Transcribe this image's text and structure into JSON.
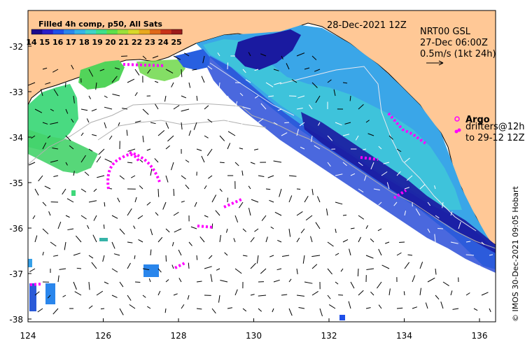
{
  "colorbar": {
    "title": "Filled 4h comp, p50, All Sats",
    "ticks": [
      "14",
      "15",
      "16",
      "17",
      "18",
      "19",
      "20",
      "21",
      "22",
      "23",
      "24",
      "25"
    ],
    "colors": [
      "#1a0a8c",
      "#2a1fc8",
      "#1f4fe8",
      "#2a86ec",
      "#36b3e8",
      "#3fd3c8",
      "#3fe08a",
      "#5fe04a",
      "#9ce03a",
      "#d8d82a",
      "#e8a81e",
      "#e06818",
      "#c8321a",
      "#9a1a1a"
    ]
  },
  "header": {
    "date": "28-Dec-2021 12Z",
    "altimetry_line1": "NRT00 GSL",
    "altimetry_line2": "27-Dec 06:00Z",
    "scale_label": "0.5m/s (1kt 24h)"
  },
  "legend": {
    "argo_label": "Argo",
    "drifters_line1": "drifters@12h",
    "drifters_line2": "to 29-12 12Z",
    "marker_color": "#ff00ff"
  },
  "copyright": "© IMOS 30-Dec-2021 09:05 Hobart",
  "axes": {
    "y_ticks": [
      "-32",
      "-33",
      "-34",
      "-35",
      "-36",
      "-37",
      "-38"
    ],
    "x_ticks": [
      "124",
      "126",
      "128",
      "130",
      "132",
      "134",
      "136"
    ]
  },
  "colors": {
    "land": "#ffc896",
    "ocean_bg": "#ffffff",
    "coast": "#000000",
    "contour": "#b4b4b4"
  }
}
